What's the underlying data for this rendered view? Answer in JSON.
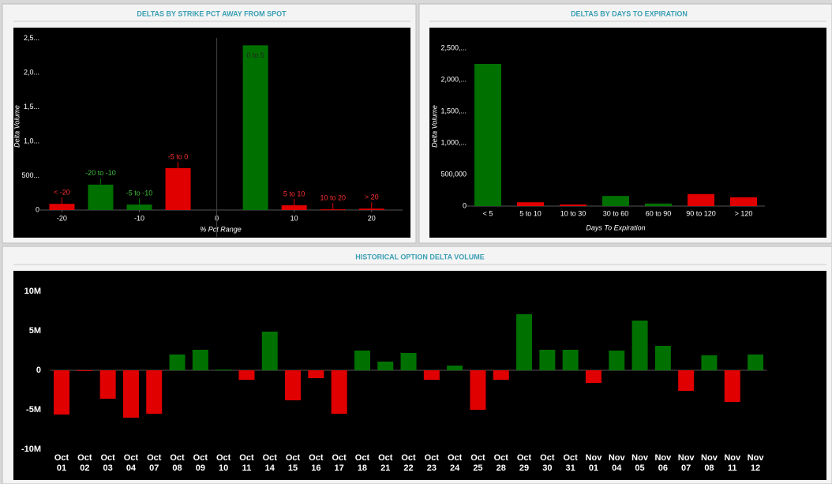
{
  "chart_data": [
    {
      "type": "bar",
      "title": "DELTAS BY STRIKE PCT AWAY FROM SPOT",
      "x_label": "% Pct Range",
      "y_label": "Delta Volume",
      "categories": [
        "< -20",
        "-20 to -10",
        "-5 to -10",
        "-5 to 0",
        "0 to 5",
        "5 to 10",
        "10 to 20",
        "> 20"
      ],
      "x": [
        -20,
        -15,
        -10,
        -5,
        5,
        10,
        15,
        20
      ],
      "values": [
        90,
        370,
        80,
        610,
        2400,
        70,
        10,
        20
      ],
      "colors": [
        "#e00000",
        "#007000",
        "#007000",
        "#e00000",
        "#007000",
        "#e00000",
        "#e00000",
        "#e00000"
      ],
      "xlim": [
        -23,
        24
      ],
      "xticks": [
        -20,
        -10,
        0,
        10,
        20
      ],
      "ylim": [
        0,
        2600
      ],
      "yticks": [
        0,
        {
          "value": 500,
          "label": "500..."
        },
        {
          "value": 1000,
          "label": "1,0..."
        },
        {
          "value": 1500,
          "label": "1,5..."
        },
        {
          "value": 2000,
          "label": "2,0..."
        },
        {
          "value": 2500,
          "label": "2,5..."
        }
      ]
    },
    {
      "type": "bar",
      "title": "DELTAS BY DAYS TO EXPIRATION",
      "x_label": "Days To Expiration",
      "y_label": "Delta Volume",
      "categories": [
        "< 5",
        "5 to 10",
        "10 to 30",
        "30 to 60",
        "60 to 90",
        "90 to 120",
        "> 120"
      ],
      "values": [
        2250000,
        60000,
        25000,
        160000,
        40000,
        190000,
        140000
      ],
      "colors": [
        "#007000",
        "#e00000",
        "#e00000",
        "#007000",
        "#007000",
        "#e00000",
        "#e00000"
      ],
      "ylim": [
        0,
        2800000
      ],
      "yticks": [
        0,
        {
          "value": 500000,
          "label": "500,000"
        },
        {
          "value": 1000000,
          "label": "1,000,..."
        },
        {
          "value": 1500000,
          "label": "1,500,..."
        },
        {
          "value": 2000000,
          "label": "2,000,..."
        },
        {
          "value": 2500000,
          "label": "2,500,..."
        }
      ]
    },
    {
      "type": "bar",
      "title": "HISTORICAL OPTION DELTA VOLUME",
      "categories": [
        "Oct 01",
        "Oct 02",
        "Oct 03",
        "Oct 04",
        "Oct 07",
        "Oct 08",
        "Oct 09",
        "Oct 10",
        "Oct 11",
        "Oct 14",
        "Oct 15",
        "Oct 16",
        "Oct 17",
        "Oct 18",
        "Oct 21",
        "Oct 22",
        "Oct 23",
        "Oct 24",
        "Oct 25",
        "Oct 28",
        "Oct 29",
        "Oct 30",
        "Oct 31",
        "Nov 01",
        "Nov 04",
        "Nov 05",
        "Nov 06",
        "Nov 07",
        "Nov 08",
        "Nov 11",
        "Nov 12"
      ],
      "values": [
        -5600000,
        -100000,
        -3600000,
        -6000000,
        -5500000,
        2000000,
        2600000,
        100000,
        -1200000,
        4900000,
        -3800000,
        -1000000,
        -5500000,
        2500000,
        1100000,
        2200000,
        -1200000,
        600000,
        -5000000,
        -1200000,
        7100000,
        2600000,
        2600000,
        -1600000,
        2500000,
        6300000,
        3100000,
        -2600000,
        1900000,
        -4000000,
        2000000
      ],
      "positive_color": "#007000",
      "negative_color": "#e00000",
      "ylim": [
        -10000000,
        10000000
      ],
      "yticks": [
        {
          "value": -10000000,
          "label": "-10M"
        },
        {
          "value": -5000000,
          "label": "-5M"
        },
        0,
        {
          "value": 5000000,
          "label": "5M"
        },
        {
          "value": 10000000,
          "label": "10M"
        }
      ]
    }
  ]
}
